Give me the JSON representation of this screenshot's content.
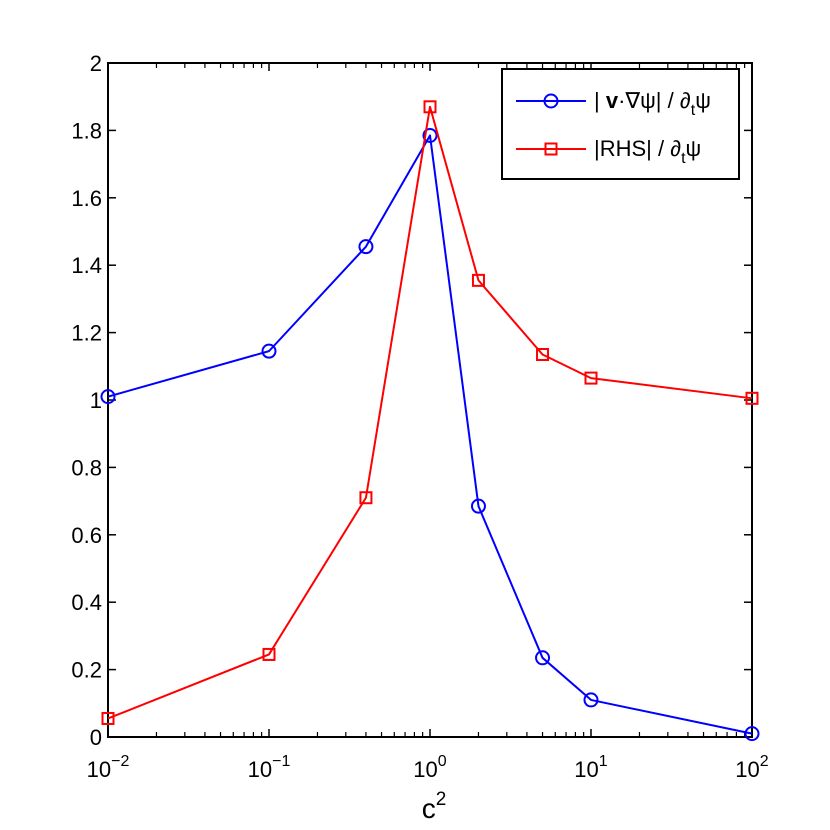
{
  "chart_data": {
    "type": "line",
    "title": "",
    "xscale": "log",
    "xlabel": {
      "base": "c",
      "sup": "2"
    },
    "ylabel": "",
    "xlim": [
      0.01,
      100
    ],
    "ylim": [
      0,
      2
    ],
    "x_ticks": [
      {
        "value": 0.01,
        "base": "10",
        "exp": "−2"
      },
      {
        "value": 0.1,
        "base": "10",
        "exp": "−1"
      },
      {
        "value": 1,
        "base": "10",
        "exp": "0"
      },
      {
        "value": 10,
        "base": "10",
        "exp": "1"
      },
      {
        "value": 100,
        "base": "10",
        "exp": "2"
      }
    ],
    "y_ticks": [
      {
        "value": 0,
        "label": "0"
      },
      {
        "value": 0.2,
        "label": "0.2"
      },
      {
        "value": 0.4,
        "label": "0.4"
      },
      {
        "value": 0.6,
        "label": "0.6"
      },
      {
        "value": 0.8,
        "label": "0.8"
      },
      {
        "value": 1,
        "label": "1"
      },
      {
        "value": 1.2,
        "label": "1.2"
      },
      {
        "value": 1.4,
        "label": "1.4"
      },
      {
        "value": 1.6,
        "label": "1.6"
      },
      {
        "value": 1.8,
        "label": "1.8"
      },
      {
        "value": 2,
        "label": "2"
      }
    ],
    "grid": false,
    "legend_position": "top-right",
    "series": [
      {
        "name": "| v·∇ψ| / ∂tψ",
        "legend": {
          "pre": "| ",
          "bold": "v",
          "mid": "·∇ψ| / ∂",
          "sub": "t",
          "post": "ψ"
        },
        "color": "#0000ff",
        "marker": "circle",
        "x": [
          0.01,
          0.1,
          0.4,
          1,
          2,
          5,
          10,
          100
        ],
        "y": [
          1.01,
          1.145,
          1.455,
          1.785,
          0.685,
          0.235,
          0.11,
          0.01
        ]
      },
      {
        "name": "|RHS| / ∂tψ",
        "legend": {
          "pre": "|RHS| / ∂",
          "bold": "",
          "mid": "",
          "sub": "t",
          "post": "ψ"
        },
        "color": "#ff0000",
        "marker": "square",
        "x": [
          0.01,
          0.1,
          0.4,
          1,
          2,
          5,
          10,
          100
        ],
        "y": [
          0.055,
          0.245,
          0.71,
          1.87,
          1.355,
          1.135,
          1.065,
          1.005
        ]
      }
    ]
  }
}
